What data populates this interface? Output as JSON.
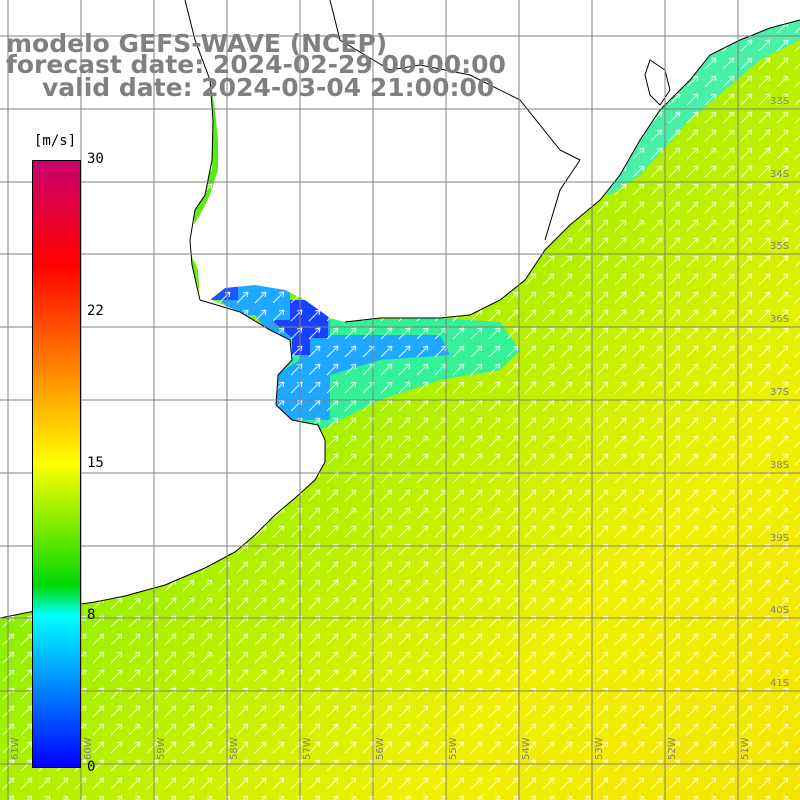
{
  "title": {
    "model": "modelo GEFS-WAVE (NCEP)",
    "forecast": "forecast date: 2024-02-29 00:00:00",
    "valid": "valid date: 2024-03-04 21:00:00"
  },
  "legend": {
    "unit": "[m/s]",
    "ticks": [
      "30",
      "22",
      "15",
      "8",
      "0"
    ],
    "colors": [
      "#c8006e",
      "#ff0000",
      "#ff7a00",
      "#ffff00",
      "#00d800",
      "#00ffff",
      "#0000ff"
    ]
  },
  "map": {
    "lat_labels": [
      "33S",
      "34S",
      "35S",
      "36S",
      "37S",
      "38S",
      "39S",
      "40S",
      "41S"
    ],
    "lon_labels": [
      "61W",
      "60W",
      "59W",
      "58W",
      "57W",
      "56W",
      "55W",
      "54W",
      "53W",
      "52W",
      "51W"
    ],
    "land_color": "#ffffff",
    "grid_color": "#808080"
  }
}
